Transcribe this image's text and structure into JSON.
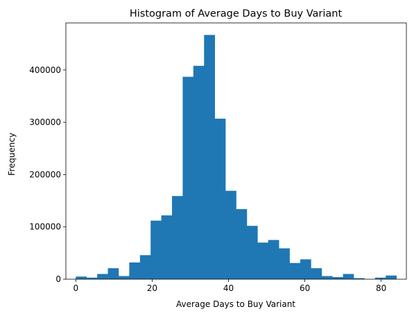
{
  "chart_data": {
    "type": "bar",
    "subtype": "histogram",
    "title": "Histogram of Average Days to Buy Variant",
    "xlabel": "Average Days to Buy Variant",
    "ylabel": "Frequency",
    "xlim": [
      -2.6,
      86.6
    ],
    "ylim": [
      0,
      490000
    ],
    "xticks": [
      0,
      20,
      40,
      60,
      80
    ],
    "yticks": [
      0,
      100000,
      200000,
      300000,
      400000
    ],
    "bar_color": "#1f77b4",
    "grid": false,
    "legend": "none",
    "bin_edges": [
      0,
      2.8,
      5.6,
      8.4,
      11.2,
      14,
      16.8,
      19.6,
      22.4,
      25.2,
      28,
      30.8,
      33.6,
      36.4,
      39.2,
      42,
      44.8,
      47.6,
      50.4,
      53.2,
      56,
      58.8,
      61.6,
      64.4,
      67.2,
      70,
      72.8,
      75.6,
      78.4,
      81.2,
      84
    ],
    "values": [
      5000,
      3000,
      10000,
      21000,
      6000,
      32000,
      46000,
      112000,
      122000,
      159000,
      387000,
      408000,
      467000,
      307000,
      169000,
      134000,
      102000,
      70000,
      75000,
      59000,
      31000,
      38000,
      21000,
      6000,
      4000,
      10000,
      2000,
      0,
      3000,
      7000
    ]
  }
}
